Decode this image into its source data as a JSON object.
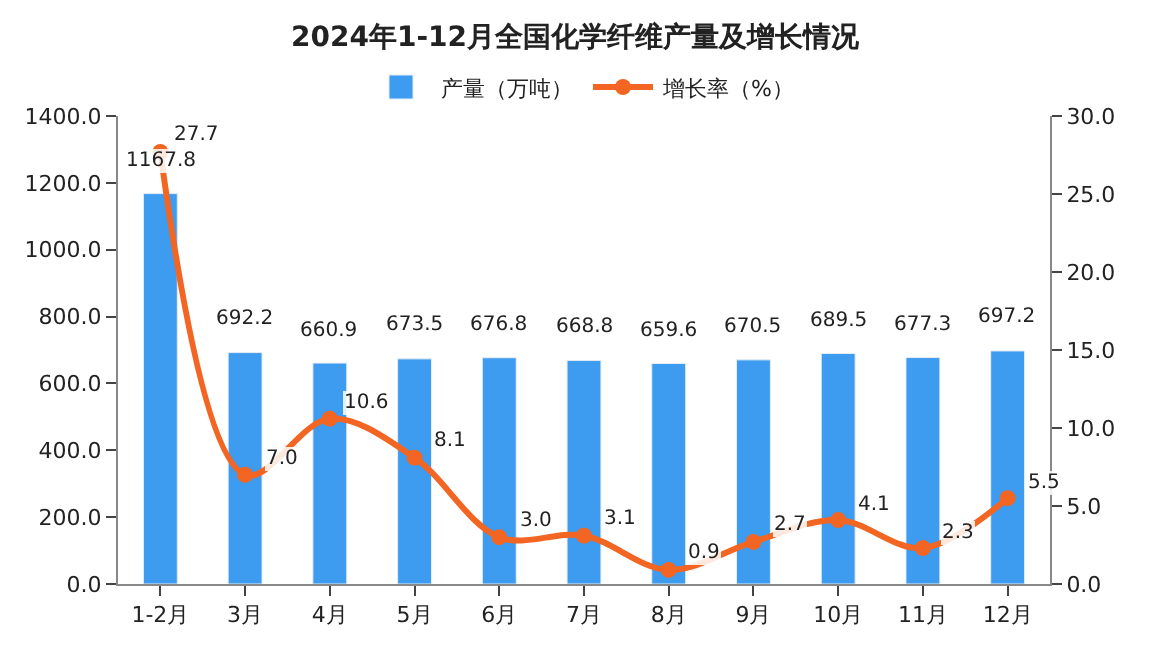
{
  "chart_data": {
    "type": "bar",
    "title": "2024年1-12月全国化学纤维产量及增长情况",
    "categories": [
      "1-2月",
      "3月",
      "4月",
      "5月",
      "6月",
      "7月",
      "8月",
      "9月",
      "10月",
      "11月",
      "12月"
    ],
    "series": [
      {
        "name": "产量（万吨）",
        "color": "#3d9bf0",
        "values": [
          1167.8,
          692.2,
          660.9,
          673.5,
          676.8,
          668.8,
          659.6,
          670.5,
          689.5,
          677.3,
          697.2
        ],
        "value_labels": [
          "1167.8",
          "692.2",
          "660.9",
          "673.5",
          "676.8",
          "668.8",
          "659.6",
          "670.5",
          "689.5",
          "677.3",
          "697.2"
        ]
      },
      {
        "name": "增长率（%）",
        "type": "line",
        "axis": "y2",
        "color": "#f26522",
        "marker": "circle",
        "values": [
          27.7,
          7.0,
          10.6,
          8.1,
          3.0,
          3.1,
          0.9,
          2.7,
          4.1,
          2.3,
          5.5
        ],
        "value_labels": [
          "27.7",
          "7.0",
          "10.6",
          "8.1",
          "3.0",
          "3.1",
          "0.9",
          "2.7",
          "4.1",
          "2.3",
          "5.5"
        ]
      }
    ],
    "ylim": [
      0,
      1400
    ],
    "yticks": [
      {
        "value": 0,
        "label": "0.0"
      },
      {
        "value": 200,
        "label": "200.0"
      },
      {
        "value": 400,
        "label": "400.0"
      },
      {
        "value": 600,
        "label": "600.0"
      },
      {
        "value": 800,
        "label": "800.0"
      },
      {
        "value": 1000,
        "label": "1000.0"
      },
      {
        "value": 1200,
        "label": "1200.0"
      },
      {
        "value": 1400,
        "label": "1400.0"
      }
    ],
    "y2lim": [
      0,
      30
    ],
    "y2ticks": [
      {
        "value": 0,
        "label": "0.0"
      },
      {
        "value": 5,
        "label": "5.0"
      },
      {
        "value": 10,
        "label": "10.0"
      },
      {
        "value": 15,
        "label": "15.0"
      },
      {
        "value": 20,
        "label": "20.0"
      },
      {
        "value": 25,
        "label": "25.0"
      },
      {
        "value": 30,
        "label": "30.0"
      }
    ],
    "legend": "top"
  }
}
